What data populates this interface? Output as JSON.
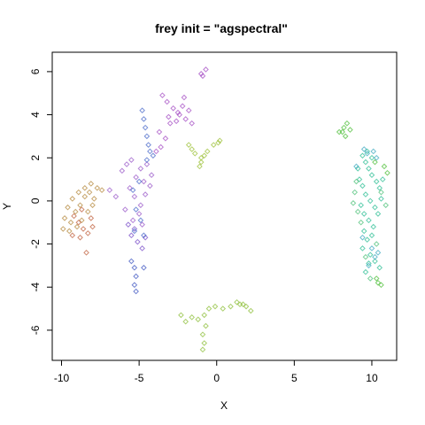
{
  "chart_data": {
    "type": "scatter",
    "title": "frey init = \"agspectral\"",
    "xlabel": "X",
    "ylabel": "Y",
    "xlim": [
      -10.6,
      11.6
    ],
    "ylim": [
      -7.4,
      6.9
    ],
    "xticks": [
      -10,
      -5,
      0,
      5,
      10
    ],
    "yticks": [
      -6,
      -4,
      -2,
      0,
      2,
      4,
      6
    ],
    "grid": false,
    "legend": "none",
    "marker": "open-diamond",
    "clusters": [
      {
        "color": "#b58a3f",
        "points": [
          [
            -9.3,
            0.1
          ],
          [
            -8.9,
            0.4
          ],
          [
            -8.5,
            0.6
          ],
          [
            -8.1,
            0.8
          ],
          [
            -7.7,
            0.6
          ],
          [
            -7.4,
            0.5
          ],
          [
            -9.6,
            -0.3
          ],
          [
            -9.8,
            -0.8
          ],
          [
            -9.9,
            -1.3
          ],
          [
            -9.5,
            -1.4
          ],
          [
            -9.0,
            -1.2
          ],
          [
            -8.7,
            -0.9
          ],
          [
            -8.3,
            -0.5
          ],
          [
            -8.0,
            -0.2
          ],
          [
            -8.5,
            0.2
          ],
          [
            -9.1,
            -0.5
          ],
          [
            -8.8,
            -0.2
          ],
          [
            -9.4,
            -1.0
          ],
          [
            -8.2,
            0.4
          ],
          [
            -7.9,
            0.1
          ]
        ]
      },
      {
        "color": "#c0623f",
        "points": [
          [
            -9.2,
            -0.7
          ],
          [
            -8.9,
            -1.0
          ],
          [
            -8.6,
            -1.3
          ],
          [
            -8.3,
            -1.5
          ],
          [
            -8.8,
            -1.7
          ],
          [
            -9.3,
            -1.6
          ],
          [
            -8.0,
            -1.2
          ],
          [
            -8.4,
            -2.4
          ],
          [
            -8.1,
            -0.8
          ],
          [
            -8.7,
            -0.4
          ]
        ]
      },
      {
        "color": "#9b5bc9",
        "points": [
          [
            -6.1,
            1.4
          ],
          [
            -5.8,
            1.7
          ],
          [
            -5.5,
            1.9
          ],
          [
            -4.9,
            1.5
          ],
          [
            -4.5,
            1.7
          ],
          [
            -4.2,
            1.2
          ],
          [
            -4.7,
            0.9
          ],
          [
            -5.2,
            1.1
          ],
          [
            -5.6,
            0.6
          ],
          [
            -5.3,
            0.2
          ],
          [
            -4.9,
            -0.2
          ],
          [
            -4.6,
            0.3
          ],
          [
            -4.3,
            0.7
          ],
          [
            -5.0,
            -0.6
          ],
          [
            -5.4,
            -0.9
          ],
          [
            -4.8,
            -1.1
          ],
          [
            -6.9,
            0.5
          ],
          [
            -6.5,
            0.2
          ],
          [
            -5.9,
            -0.4
          ]
        ]
      },
      {
        "color": "#7b4fc9",
        "points": [
          [
            -5.5,
            -1.6
          ],
          [
            -5.1,
            -1.9
          ],
          [
            -4.8,
            -2.2
          ],
          [
            -5.3,
            -1.3
          ],
          [
            -4.6,
            -1.7
          ],
          [
            -5.7,
            -1.1
          ]
        ]
      },
      {
        "color": "#4a6ac9",
        "points": [
          [
            -4.8,
            4.2
          ],
          [
            -4.7,
            3.8
          ],
          [
            -4.6,
            3.4
          ],
          [
            -4.5,
            3.0
          ],
          [
            -4.4,
            2.6
          ],
          [
            -4.3,
            2.3
          ],
          [
            -4.1,
            2.1
          ],
          [
            -4.5,
            1.9
          ],
          [
            -5.0,
            0.9
          ],
          [
            -5.4,
            0.5
          ],
          [
            -5.2,
            -0.4
          ],
          [
            -4.9,
            -0.9
          ],
          [
            -5.3,
            -1.4
          ],
          [
            -4.7,
            -1.6
          ]
        ]
      },
      {
        "color": "#3f55c2",
        "points": [
          [
            -5.5,
            -2.8
          ],
          [
            -5.3,
            -3.1
          ],
          [
            -5.2,
            -3.5
          ],
          [
            -5.3,
            -3.9
          ],
          [
            -5.2,
            -4.2
          ],
          [
            -4.7,
            -3.1
          ]
        ]
      },
      {
        "color": "#a64fc4",
        "points": [
          [
            -3.5,
            4.9
          ],
          [
            -3.2,
            4.6
          ],
          [
            -2.8,
            4.3
          ],
          [
            -2.4,
            4.0
          ],
          [
            -2.6,
            3.7
          ],
          [
            -3.0,
            3.6
          ],
          [
            -2.0,
            3.8
          ],
          [
            -1.6,
            3.6
          ],
          [
            -2.2,
            4.4
          ],
          [
            -3.7,
            3.2
          ],
          [
            -3.3,
            2.9
          ],
          [
            -3.6,
            2.5
          ],
          [
            -3.9,
            2.3
          ],
          [
            -1.0,
            5.9
          ],
          [
            -0.7,
            6.1
          ],
          [
            -0.9,
            5.8
          ],
          [
            -2.1,
            4.8
          ],
          [
            -1.8,
            4.2
          ],
          [
            -2.5,
            4.1
          ],
          [
            -3.1,
            3.9
          ]
        ]
      },
      {
        "color": "#9ec23a",
        "points": [
          [
            -1.4,
            2.2
          ],
          [
            -1.0,
            2.0
          ],
          [
            -0.6,
            2.3
          ],
          [
            -0.2,
            2.6
          ],
          [
            0.2,
            2.8
          ],
          [
            -1.1,
            1.6
          ],
          [
            -1.0,
            1.8
          ],
          [
            -1.8,
            2.6
          ],
          [
            -1.6,
            2.4
          ],
          [
            -0.8,
            2.1
          ],
          [
            0.1,
            2.7
          ]
        ]
      },
      {
        "color": "#8dbf3a",
        "points": [
          [
            -2.3,
            -5.3
          ],
          [
            -2.0,
            -5.6
          ],
          [
            -1.6,
            -5.4
          ],
          [
            -1.2,
            -5.5
          ],
          [
            -0.8,
            -5.3
          ],
          [
            -0.5,
            -5.0
          ],
          [
            -0.1,
            -4.9
          ],
          [
            0.4,
            -5.0
          ],
          [
            0.9,
            -4.9
          ],
          [
            1.3,
            -4.7
          ],
          [
            1.7,
            -4.8
          ],
          [
            2.2,
            -5.1
          ],
          [
            -0.9,
            -6.2
          ],
          [
            -0.8,
            -6.6
          ],
          [
            -0.9,
            -6.9
          ],
          [
            -0.7,
            -5.8
          ],
          [
            1.5,
            -4.8
          ],
          [
            1.9,
            -4.9
          ]
        ]
      },
      {
        "color": "#4fbf3a",
        "points": [
          [
            7.9,
            3.2
          ],
          [
            8.2,
            3.4
          ],
          [
            8.4,
            3.6
          ],
          [
            8.6,
            3.3
          ],
          [
            8.3,
            3.0
          ],
          [
            8.1,
            3.2
          ],
          [
            10.4,
            -3.8
          ],
          [
            10.6,
            -3.9
          ],
          [
            10.3,
            -3.6
          ],
          [
            10.8,
            1.6
          ],
          [
            11.0,
            1.3
          ],
          [
            10.2,
            1.8
          ]
        ]
      },
      {
        "color": "#2fbf95",
        "points": [
          [
            9.4,
            2.1
          ],
          [
            9.6,
            1.8
          ],
          [
            9.8,
            1.5
          ],
          [
            10.0,
            1.2
          ],
          [
            10.3,
            0.9
          ],
          [
            10.5,
            0.6
          ],
          [
            9.2,
            1.0
          ],
          [
            9.4,
            0.7
          ],
          [
            9.6,
            0.3
          ],
          [
            9.9,
            0.0
          ],
          [
            10.2,
            -0.3
          ],
          [
            10.4,
            -0.6
          ],
          [
            9.8,
            -0.9
          ],
          [
            10.1,
            -1.2
          ],
          [
            9.5,
            -1.4
          ],
          [
            9.7,
            -1.8
          ],
          [
            9.4,
            -2.2
          ],
          [
            9.9,
            -2.5
          ],
          [
            10.2,
            -2.8
          ],
          [
            10.5,
            -3.1
          ],
          [
            9.6,
            -3.3
          ],
          [
            9.8,
            -2.9
          ],
          [
            10.0,
            -1.6
          ],
          [
            9.3,
            -0.2
          ],
          [
            10.6,
            0.1
          ],
          [
            9.1,
            1.5
          ],
          [
            10.7,
            1.0
          ],
          [
            9.7,
            2.3
          ],
          [
            10.0,
            2.0
          ],
          [
            9.5,
            -0.6
          ]
        ]
      },
      {
        "color": "#4fc27a",
        "points": [
          [
            8.9,
            0.4
          ],
          [
            9.1,
            -0.5
          ],
          [
            9.3,
            -1.0
          ],
          [
            9.6,
            -2.6
          ],
          [
            10.3,
            -2.0
          ],
          [
            10.9,
            -0.2
          ],
          [
            10.6,
            0.4
          ],
          [
            9.0,
            0.9
          ],
          [
            8.8,
            -0.1
          ],
          [
            9.9,
            -3.6
          ]
        ]
      },
      {
        "color": "#3fa9c0",
        "points": [
          [
            9.5,
            2.4
          ],
          [
            9.7,
            2.2
          ],
          [
            10.1,
            2.3
          ],
          [
            10.3,
            2.0
          ],
          [
            9.0,
            1.6
          ],
          [
            10.4,
            -2.4
          ],
          [
            10.2,
            -2.6
          ],
          [
            9.8,
            -3.0
          ],
          [
            10.0,
            -2.2
          ],
          [
            9.4,
            -1.7
          ]
        ]
      }
    ]
  }
}
